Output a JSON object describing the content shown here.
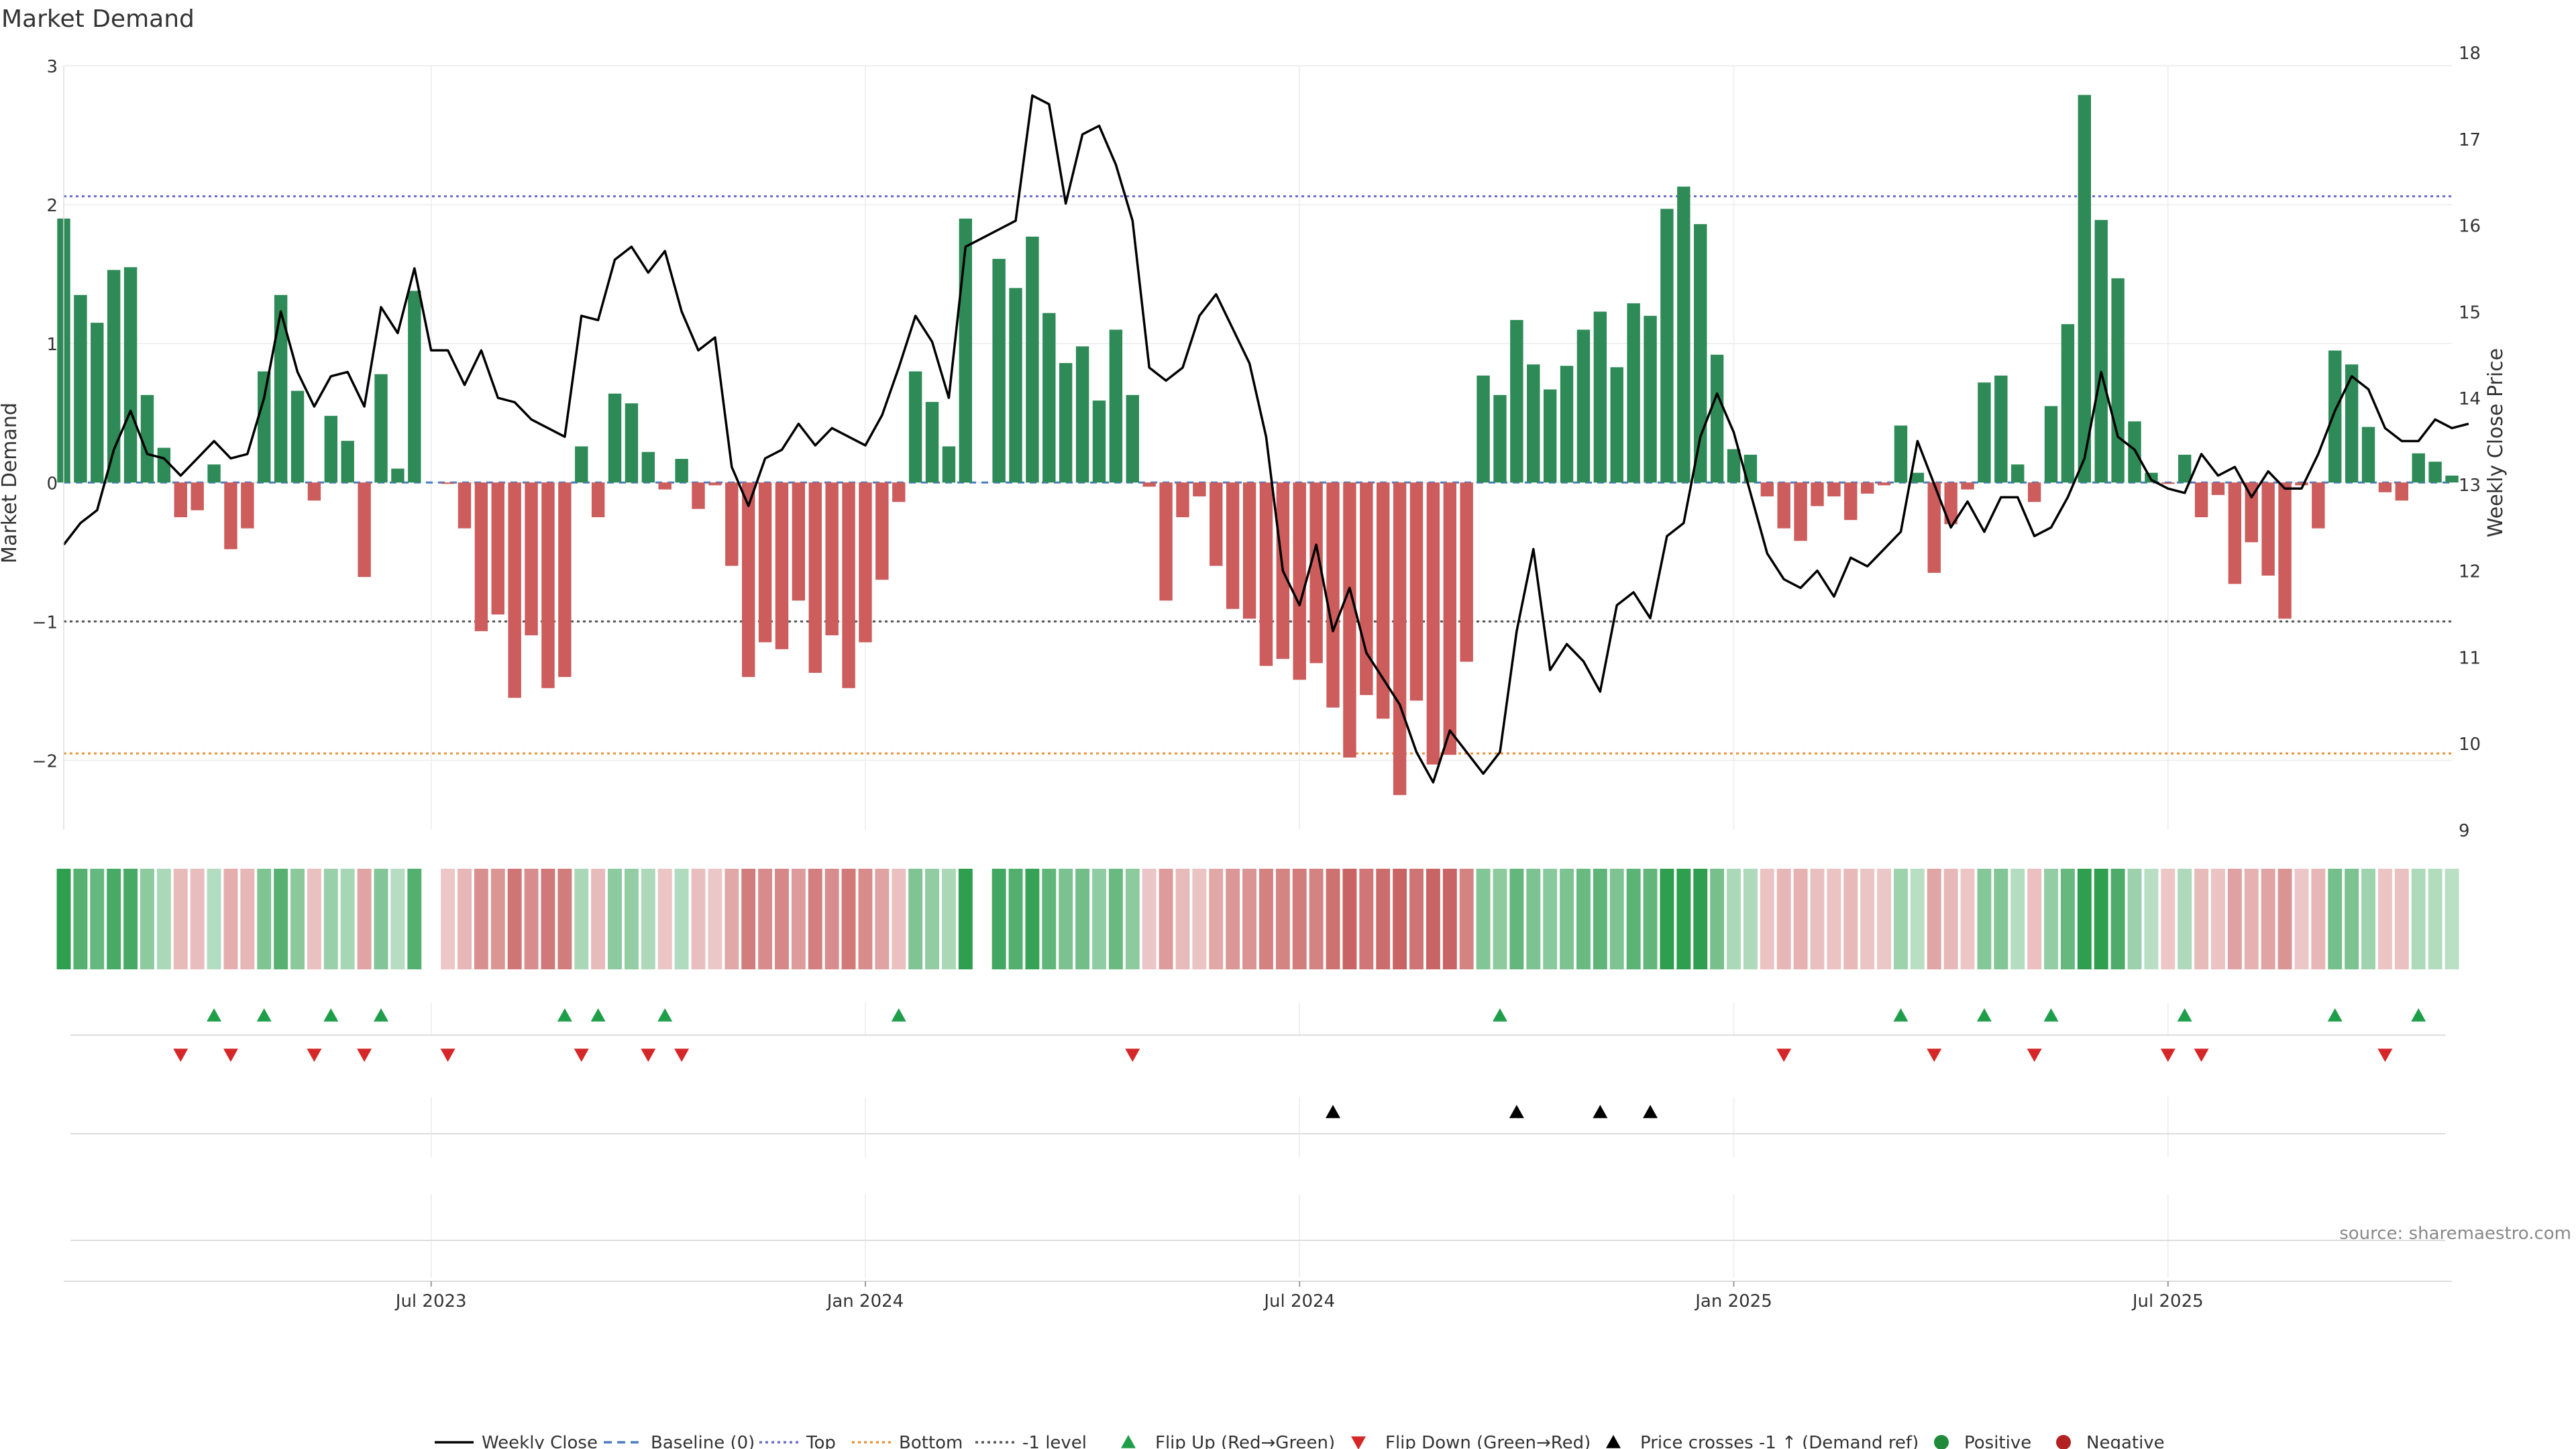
{
  "chart_data": {
    "type": "bar",
    "title": "Market Demand",
    "ylabel": "Market Demand",
    "y2label": "Weekly Close Price",
    "ylim": [
      -2.5,
      3.0
    ],
    "y2lim": [
      9,
      18
    ],
    "yticks": [
      {
        "v": 3,
        "t": "3"
      },
      {
        "v": 2,
        "t": "2"
      },
      {
        "v": 1,
        "t": "1"
      },
      {
        "v": 0,
        "t": "0"
      },
      {
        "v": -1,
        "t": "−1"
      },
      {
        "v": -2,
        "t": "−2"
      }
    ],
    "y2ticks": [
      {
        "v": 18,
        "t": "18"
      },
      {
        "v": 17,
        "t": "17"
      },
      {
        "v": 16,
        "t": "16"
      },
      {
        "v": 15,
        "t": "15"
      },
      {
        "v": 14,
        "t": "14"
      },
      {
        "v": 13,
        "t": "13"
      },
      {
        "v": 12,
        "t": "12"
      },
      {
        "v": 11,
        "t": "11"
      },
      {
        "v": 10,
        "t": "10"
      },
      {
        "v": 9,
        "t": "9"
      }
    ],
    "xticks": [
      {
        "i": 22,
        "t": "Jul 2023"
      },
      {
        "i": 48,
        "t": "Jan 2024"
      },
      {
        "i": 74,
        "t": "Jul 2024"
      },
      {
        "i": 100,
        "t": "Jan 2025"
      },
      {
        "i": 126,
        "t": "Jul 2025"
      }
    ],
    "reference_lines": {
      "top": 2.06,
      "bottom": -1.95,
      "minus_one": -1.0,
      "baseline": 0
    },
    "demand": [
      1.9,
      1.35,
      1.15,
      1.53,
      1.55,
      0.63,
      0.25,
      -0.25,
      -0.2,
      0.13,
      -0.48,
      -0.33,
      0.8,
      1.35,
      0.66,
      -0.13,
      0.48,
      0.3,
      -0.68,
      0.78,
      0.1,
      1.38,
      0.0,
      -0.01,
      -0.33,
      -1.07,
      -0.95,
      -1.55,
      -1.1,
      -1.48,
      -1.4,
      0.26,
      -0.25,
      0.64,
      0.57,
      0.22,
      -0.05,
      0.17,
      -0.19,
      -0.02,
      -0.6,
      -1.4,
      -1.15,
      -1.2,
      -0.85,
      -1.37,
      -1.1,
      -1.48,
      -1.15,
      -0.7,
      -0.14,
      0.8,
      0.58,
      0.26,
      1.9,
      0.0,
      1.61,
      1.4,
      1.77,
      1.22,
      0.86,
      0.98,
      0.59,
      1.1,
      0.63,
      -0.03,
      -0.85,
      -0.25,
      -0.1,
      -0.6,
      -0.91,
      -0.98,
      -1.32,
      -1.27,
      -1.42,
      -1.3,
      -1.62,
      -1.98,
      -1.53,
      -1.7,
      -2.25,
      -1.57,
      -2.03,
      -1.96,
      -1.29,
      0.77,
      0.63,
      1.17,
      0.85,
      0.67,
      0.84,
      1.1,
      1.23,
      0.83,
      1.29,
      1.2,
      1.97,
      2.13,
      1.86,
      0.92,
      0.24,
      0.2,
      -0.1,
      -0.33,
      -0.42,
      -0.17,
      -0.1,
      -0.27,
      -0.08,
      -0.02,
      0.41,
      0.07,
      -0.65,
      -0.3,
      -0.05,
      0.72,
      0.77,
      0.13,
      -0.14,
      0.55,
      1.14,
      2.79,
      1.89,
      1.47,
      0.44,
      0.07,
      -0.01,
      0.2,
      -0.25,
      -0.09,
      -0.73,
      -0.43,
      -0.67,
      -0.98,
      -0.02,
      -0.33,
      0.95,
      0.85,
      0.4,
      -0.07,
      -0.13,
      0.21,
      0.15,
      0.05
    ],
    "close": [
      12.3,
      12.55,
      12.7,
      13.4,
      13.85,
      13.35,
      13.3,
      13.1,
      13.3,
      13.5,
      13.3,
      13.35,
      14.0,
      15.0,
      14.3,
      13.9,
      14.25,
      14.3,
      13.9,
      15.05,
      14.75,
      15.5,
      14.55,
      14.55,
      14.15,
      14.55,
      14.0,
      13.95,
      13.75,
      13.65,
      13.55,
      14.95,
      14.9,
      15.6,
      15.75,
      15.45,
      15.7,
      15.0,
      14.55,
      14.7,
      13.2,
      12.75,
      13.3,
      13.4,
      13.7,
      13.45,
      13.65,
      13.55,
      13.45,
      13.8,
      14.35,
      14.95,
      14.65,
      14.0,
      15.75,
      15.85,
      15.95,
      16.05,
      17.5,
      17.4,
      16.25,
      17.05,
      17.15,
      16.7,
      16.05,
      14.35,
      14.2,
      14.35,
      14.95,
      15.2,
      14.8,
      14.4,
      13.55,
      12.0,
      11.6,
      12.3,
      11.3,
      11.8,
      11.05,
      10.75,
      10.45,
      9.9,
      9.55,
      10.15,
      9.9,
      9.65,
      9.9,
      11.3,
      12.25,
      10.85,
      11.15,
      10.95,
      10.6,
      11.6,
      11.75,
      11.45,
      12.4,
      12.55,
      13.55,
      14.05,
      13.6,
      12.9,
      12.2,
      11.9,
      11.8,
      12.0,
      11.7,
      12.15,
      12.05,
      12.25,
      12.45,
      13.5,
      13.0,
      12.5,
      12.8,
      12.45,
      12.85,
      12.85,
      12.4,
      12.5,
      12.85,
      13.3,
      14.3,
      13.55,
      13.4,
      13.05,
      12.95,
      12.9,
      13.35,
      13.1,
      13.2,
      12.85,
      13.15,
      12.95,
      12.95,
      13.35,
      13.85,
      14.25,
      14.1,
      13.65,
      13.5,
      13.5,
      13.75,
      13.65,
      13.7
    ],
    "flip_up_weeks": [
      9,
      12,
      16,
      19,
      30,
      32,
      36,
      50,
      86,
      110,
      115,
      119,
      127,
      136,
      141
    ],
    "flip_down_weeks": [
      7,
      10,
      15,
      18,
      23,
      31,
      35,
      37,
      64,
      103,
      112,
      118,
      126,
      128,
      139
    ],
    "price_cross_weeks": [
      76,
      87,
      92,
      95
    ],
    "source": "source: sharemaestro.com",
    "legend": {
      "placement": "bottom-center",
      "items": [
        {
          "label": "Weekly Close",
          "kind": "line",
          "color": "#000000"
        },
        {
          "label": "Baseline (0)",
          "kind": "dash",
          "color": "#4a7bbf"
        },
        {
          "label": "Top",
          "kind": "dot",
          "color": "#6a6acf"
        },
        {
          "label": "Bottom",
          "kind": "dot",
          "color": "#e8923a"
        },
        {
          "label": "-1 level",
          "kind": "dot",
          "color": "#555555"
        },
        {
          "label": "Flip Up (Red→Green)",
          "kind": "tri-up",
          "color": "#1f9e4a"
        },
        {
          "label": "Flip Down (Green→Red)",
          "kind": "tri-down",
          "color": "#d62728"
        },
        {
          "label": "Price crosses -1 ↑ (Demand ref)",
          "kind": "tri-up",
          "color": "#000000"
        },
        {
          "label": "Positive",
          "kind": "circle",
          "color": "#1f8a3a"
        },
        {
          "label": "Negative",
          "kind": "circle",
          "color": "#b22222"
        }
      ]
    },
    "colors": {
      "positive": "#2e8b57",
      "negative": "#cd5c5c",
      "price": "#000000"
    }
  }
}
